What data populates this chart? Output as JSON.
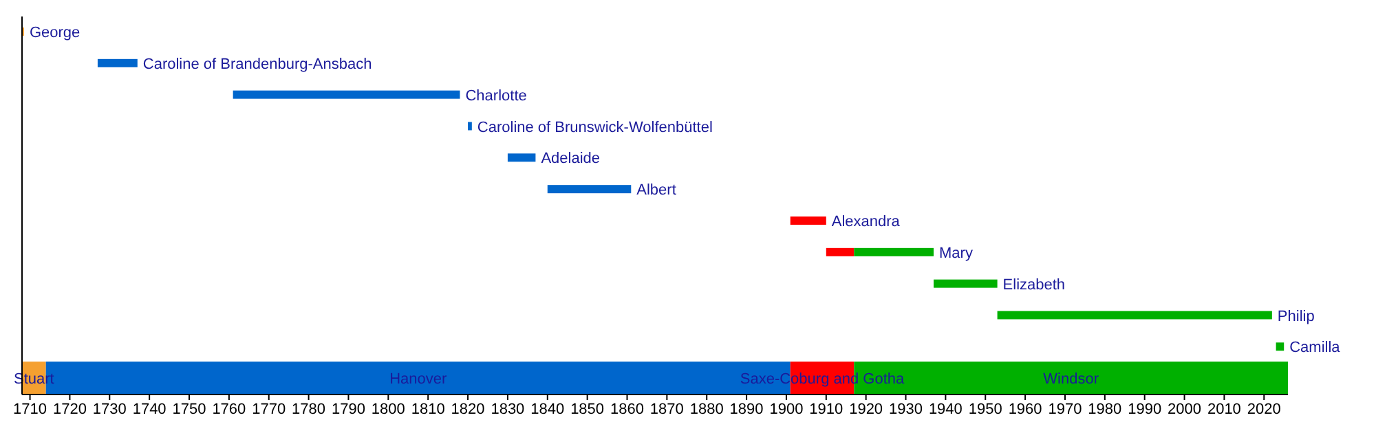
{
  "chart_data": {
    "type": "bar",
    "orientation": "horizontal",
    "categories": [
      "George",
      "Caroline of Brandenburg-Ansbach",
      "Charlotte",
      "Caroline of Brunswick-Wolfenbüttel",
      "Adelaide",
      "Albert",
      "Alexandra",
      "Mary",
      "Elizabeth",
      "Philip",
      "Camilla",
      null
    ],
    "series": [
      {
        "name": "Stuart",
        "color": "#f5a030",
        "base": [
          1708,
          null,
          null,
          null,
          null,
          null,
          null,
          null,
          null,
          null,
          null,
          1708
        ],
        "values": [
          0.5,
          null,
          null,
          null,
          null,
          null,
          null,
          null,
          null,
          null,
          null,
          6
        ]
      },
      {
        "name": "Hanover",
        "color": "#0066cc",
        "base": [
          null,
          1727,
          1761,
          1820,
          1830,
          1840,
          null,
          null,
          null,
          null,
          null,
          1714
        ],
        "values": [
          null,
          10,
          57,
          1,
          7,
          21,
          null,
          null,
          null,
          null,
          null,
          187
        ]
      },
      {
        "name": "Saxe-Coburg and Gotha",
        "color": "#ff0000",
        "base": [
          null,
          null,
          null,
          null,
          null,
          null,
          1901,
          1910,
          null,
          null,
          null,
          1901
        ],
        "values": [
          null,
          null,
          null,
          null,
          null,
          null,
          9,
          7,
          null,
          null,
          null,
          16
        ]
      },
      {
        "name": "Windsor",
        "color": "#00b000",
        "base": [
          null,
          null,
          null,
          null,
          null,
          null,
          null,
          1917,
          1937,
          1953,
          2023,
          1917
        ],
        "values": [
          null,
          null,
          null,
          null,
          null,
          null,
          null,
          20,
          16,
          69,
          2,
          109
        ]
      }
    ],
    "xlim": [
      1708,
      2026
    ],
    "xticks": [
      1710,
      1720,
      1730,
      1740,
      1750,
      1760,
      1770,
      1780,
      1790,
      1800,
      1810,
      1820,
      1830,
      1840,
      1850,
      1860,
      1870,
      1880,
      1890,
      1900,
      1910,
      1920,
      1930,
      1940,
      1950,
      1960,
      1970,
      1980,
      1990,
      2000,
      2010,
      2020
    ]
  }
}
